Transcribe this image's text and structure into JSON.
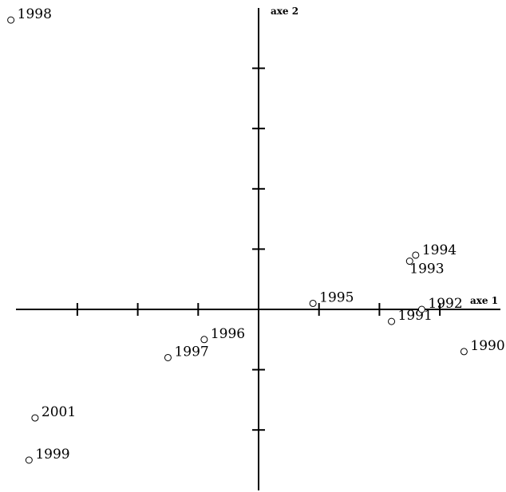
{
  "chart_data": {
    "type": "scatter",
    "xlabel": "axe 1",
    "ylabel": "axe 2",
    "xlim": [
      -4.3,
      4.0
    ],
    "ylim": [
      -3.0,
      5.1
    ],
    "points": [
      {
        "label": "1990",
        "x": 3.4,
        "y": -0.7
      },
      {
        "label": "1991",
        "x": 2.2,
        "y": -0.2
      },
      {
        "label": "1992",
        "x": 2.7,
        "y": 0.0
      },
      {
        "label": "1993",
        "x": 2.5,
        "y": 0.8
      },
      {
        "label": "1994",
        "x": 2.6,
        "y": 0.9
      },
      {
        "label": "1995",
        "x": 0.9,
        "y": 0.1
      },
      {
        "label": "1996",
        "x": -0.9,
        "y": -0.5
      },
      {
        "label": "1997",
        "x": -1.5,
        "y": -0.8
      },
      {
        "label": "1998",
        "x": -4.1,
        "y": 4.8
      },
      {
        "label": "1999",
        "x": -3.8,
        "y": -2.5
      },
      {
        "label": "2001",
        "x": -3.7,
        "y": -1.8
      }
    ],
    "xticks": [
      -3,
      -2,
      -1,
      1,
      2,
      3
    ],
    "yticks": [
      -2,
      -1,
      1,
      2,
      3,
      4
    ],
    "grid": false,
    "legend": "none"
  }
}
